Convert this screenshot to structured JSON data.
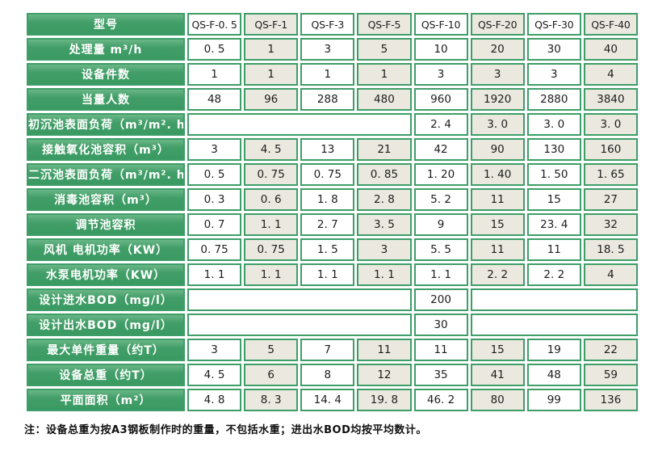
{
  "colors": {
    "header_green": "#3a9a62",
    "border_green": "#3e9e68",
    "alt_cell_beige": "#eae8df",
    "cell_white": "#ffffff",
    "text_dark": "#1d1d1d",
    "label_text": "#ffffff"
  },
  "table": {
    "header_label": "型号",
    "models": [
      "QS-F-0. 5",
      "QS-F-1",
      "QS-F-3",
      "QS-F-5",
      "QS-F-10",
      "QS-F-20",
      "QS-F-30",
      "QS-F-40"
    ],
    "rows": [
      {
        "label": "处理量 m³/h",
        "cells": [
          "0. 5",
          "1",
          "3",
          "5",
          "10",
          "20",
          "30",
          "40"
        ]
      },
      {
        "label": "设备件数",
        "cells": [
          "1",
          "1",
          "1",
          "1",
          "3",
          "3",
          "3",
          "4"
        ]
      },
      {
        "label": "当量人数",
        "cells": [
          "48",
          "96",
          "288",
          "480",
          "960",
          "1920",
          "2880",
          "3840"
        ]
      },
      {
        "label": "初沉池表面负荷（m³/m². h）",
        "merge_before": 4,
        "cells": [
          "2. 4",
          "3. 0",
          "3. 0",
          "3. 0"
        ]
      },
      {
        "label": "接触氧化池容积（m³）",
        "cells": [
          "3",
          "4. 5",
          "13",
          "21",
          "42",
          "90",
          "130",
          "160"
        ]
      },
      {
        "label": "二沉池表面负荷（m³/m². h）",
        "cells": [
          "0. 5",
          "0. 75",
          "0. 75",
          "0. 85",
          "1. 20",
          "1. 40",
          "1. 50",
          "1. 65"
        ]
      },
      {
        "label": "消毒池容积（m³）",
        "cells": [
          "0. 3",
          "0. 6",
          "1. 8",
          "2. 8",
          "5. 2",
          "11",
          "15",
          "27"
        ]
      },
      {
        "label": "调节池容积",
        "cells": [
          "0. 7",
          "1. 1",
          "2. 7",
          "3. 5",
          "9",
          "15",
          "23. 4",
          "32"
        ]
      },
      {
        "label": "风机 电机功率（KW）",
        "cells": [
          "0. 75",
          "0. 75",
          "1. 5",
          "3",
          "5. 5",
          "11",
          "11",
          "18. 5"
        ]
      },
      {
        "label": "水泵电机功率（KW）",
        "cells": [
          "1. 1",
          "1. 1",
          "1. 1",
          "1. 1",
          "1. 1",
          "2. 2",
          "2. 2",
          "4"
        ]
      },
      {
        "label": "设计进水BOD（mg/l）",
        "merge_before": 4,
        "cells": [
          "200"
        ],
        "merge_after": 3
      },
      {
        "label": "设计出水BOD（mg/l）",
        "merge_before": 4,
        "cells": [
          "30"
        ],
        "merge_after": 3
      },
      {
        "label": "最大单件重量（约T）",
        "cells": [
          "3",
          "5",
          "7",
          "11",
          "11",
          "15",
          "19",
          "22"
        ]
      },
      {
        "label": "设备总重（约T）",
        "cells": [
          "4. 5",
          "6",
          "8",
          "12",
          "35",
          "41",
          "48",
          "59"
        ]
      },
      {
        "label": "平面面积（m²）",
        "cells": [
          "4. 8",
          "8. 3",
          "14. 4",
          "19. 8",
          "46. 2",
          "80",
          "99",
          "136"
        ]
      }
    ]
  },
  "note": "注：设备总重为按A3钢板制作时的重量，不包括水重；进出水BOD均按平均数计。"
}
